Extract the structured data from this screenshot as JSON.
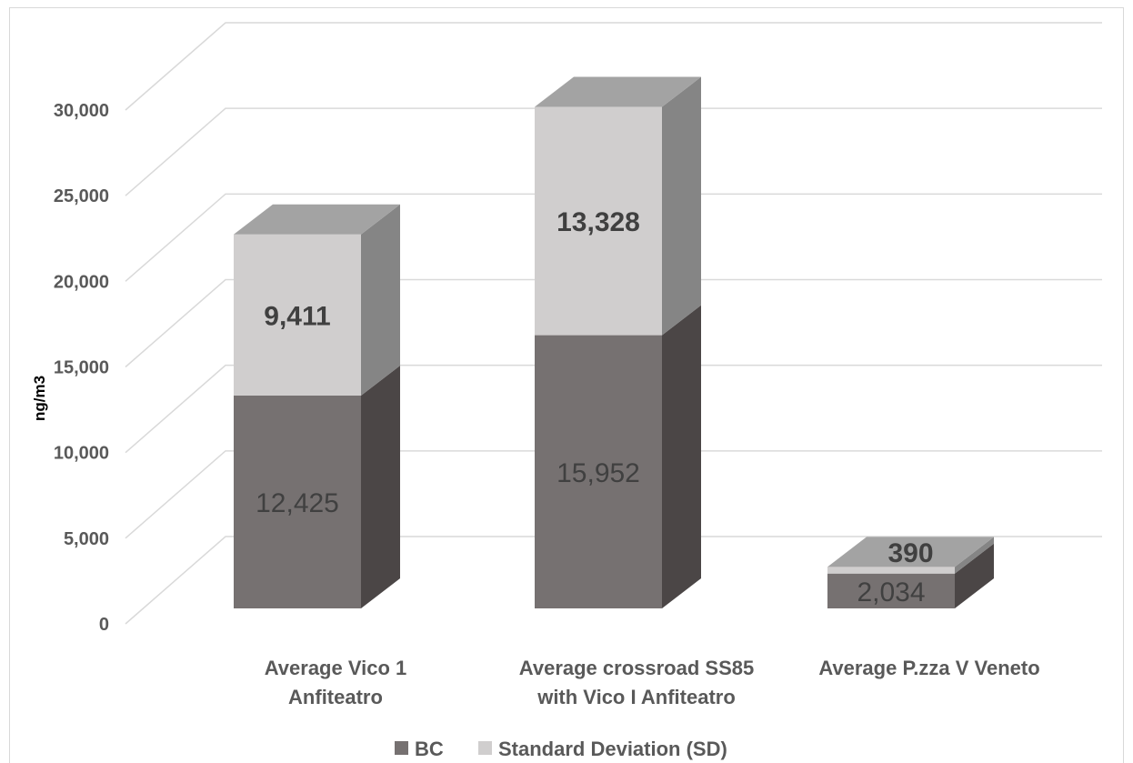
{
  "chart_data": {
    "type": "bar",
    "stacked": true,
    "three_d": true,
    "categories": [
      [
        "Average Vico 1",
        "Anfiteatro"
      ],
      [
        "Average crossroad SS85",
        "with Vico I Anfiteatro"
      ],
      [
        "Average P.zza V Veneto"
      ]
    ],
    "series": [
      {
        "name": "BC",
        "values": [
          12425,
          15952,
          2034
        ],
        "labels": [
          "12,425",
          "15,952",
          "2,034"
        ]
      },
      {
        "name": "Standard Deviation (SD)",
        "values": [
          9411,
          13328,
          390
        ],
        "labels": [
          "9,411",
          "13,328",
          "390"
        ]
      }
    ],
    "ylabel": "ng/m3",
    "ylim": [
      0,
      30000
    ],
    "yticks": [
      {
        "value": 0,
        "label": "0"
      },
      {
        "value": 5000,
        "label": "5,000"
      },
      {
        "value": 10000,
        "label": "10,000"
      },
      {
        "value": 15000,
        "label": "15,000"
      },
      {
        "value": 20000,
        "label": "20,000"
      },
      {
        "value": 25000,
        "label": "25,000"
      },
      {
        "value": 30000,
        "label": "30,000"
      }
    ],
    "grid": true,
    "legend": "bottom",
    "colors": {
      "bc_front": "#767171",
      "bc_side": "#4b4646",
      "bc_top": "#858181",
      "sd_front": "#d0cece",
      "sd_side": "#858585",
      "sd_top": "#a3a3a3",
      "grid": "#d9d9d9",
      "legend_bc": "#767171",
      "legend_sd": "#d0cece"
    }
  }
}
